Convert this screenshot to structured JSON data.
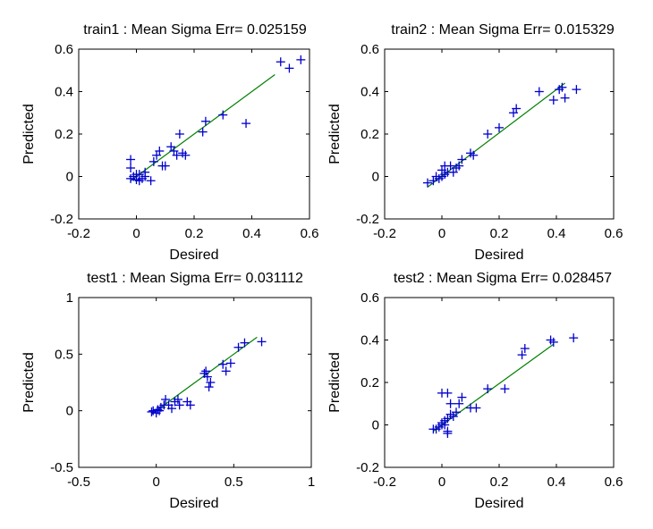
{
  "chart_data": [
    {
      "type": "scatter",
      "title": "train1 :  Mean Sigma Err= 0.025159",
      "xlabel": "Desired",
      "ylabel": "Predicted",
      "xlim": [
        -0.2,
        0.6
      ],
      "ylim": [
        -0.2,
        0.6
      ],
      "xticks": [
        "-0.2",
        "0",
        "0.2",
        "0.4",
        "0.6"
      ],
      "yticks": [
        "-0.2",
        "0",
        "0.2",
        "0.4",
        "0.6"
      ],
      "marker_color": "#0000cc",
      "line_color": "#008000",
      "fit_line": [
        [
          -0.02,
          -0.02
        ],
        [
          0.48,
          0.48
        ]
      ],
      "points": [
        [
          -0.02,
          0.08
        ],
        [
          -0.02,
          0.04
        ],
        [
          -0.01,
          0.0
        ],
        [
          -0.02,
          -0.01
        ],
        [
          0.0,
          -0.015
        ],
        [
          0.01,
          -0.02
        ],
        [
          0.02,
          -0.01
        ],
        [
          0.03,
          0.0
        ],
        [
          0.0,
          0.01
        ],
        [
          0.01,
          0.01
        ],
        [
          0.03,
          0.02
        ],
        [
          0.05,
          -0.02
        ],
        [
          0.06,
          0.07
        ],
        [
          0.07,
          0.1
        ],
        [
          0.08,
          0.12
        ],
        [
          0.09,
          0.05
        ],
        [
          0.1,
          0.05
        ],
        [
          0.12,
          0.14
        ],
        [
          0.13,
          0.12
        ],
        [
          0.14,
          0.1
        ],
        [
          0.15,
          0.2
        ],
        [
          0.16,
          0.11
        ],
        [
          0.17,
          0.1
        ],
        [
          0.23,
          0.21
        ],
        [
          0.24,
          0.26
        ],
        [
          0.3,
          0.29
        ],
        [
          0.38,
          0.25
        ],
        [
          0.5,
          0.54
        ],
        [
          0.53,
          0.51
        ],
        [
          0.57,
          0.55
        ]
      ]
    },
    {
      "type": "scatter",
      "title": "train2 :  Mean Sigma Err= 0.015329",
      "xlabel": "Desired",
      "ylabel": "Predicted",
      "xlim": [
        -0.2,
        0.6
      ],
      "ylim": [
        -0.2,
        0.6
      ],
      "xticks": [
        "-0.2",
        "0",
        "0.2",
        "0.4",
        "0.6"
      ],
      "yticks": [
        "-0.2",
        "0",
        "0.2",
        "0.4",
        "0.6"
      ],
      "marker_color": "#0000cc",
      "line_color": "#008000",
      "fit_line": [
        [
          -0.05,
          -0.05
        ],
        [
          0.43,
          0.44
        ]
      ],
      "points": [
        [
          -0.05,
          -0.03
        ],
        [
          -0.03,
          -0.02
        ],
        [
          -0.02,
          0.0
        ],
        [
          -0.01,
          -0.01
        ],
        [
          0.0,
          0.0
        ],
        [
          0.01,
          0.01
        ],
        [
          0.02,
          0.02
        ],
        [
          0.0,
          0.03
        ],
        [
          0.01,
          0.05
        ],
        [
          0.03,
          0.05
        ],
        [
          0.04,
          0.02
        ],
        [
          0.05,
          0.04
        ],
        [
          0.06,
          0.05
        ],
        [
          0.07,
          0.08
        ],
        [
          0.1,
          0.11
        ],
        [
          0.11,
          0.1
        ],
        [
          0.16,
          0.2
        ],
        [
          0.2,
          0.23
        ],
        [
          0.25,
          0.3
        ],
        [
          0.26,
          0.32
        ],
        [
          0.34,
          0.4
        ],
        [
          0.39,
          0.36
        ],
        [
          0.41,
          0.41
        ],
        [
          0.42,
          0.42
        ],
        [
          0.43,
          0.37
        ],
        [
          0.47,
          0.41
        ]
      ]
    },
    {
      "type": "scatter",
      "title": "test1 :  Mean Sigma Err= 0.031112",
      "xlabel": "Desired",
      "ylabel": "Predicted",
      "xlim": [
        -0.5,
        1
      ],
      "ylim": [
        -0.5,
        1
      ],
      "xticks": [
        "-0.5",
        "0",
        "0.5",
        "1"
      ],
      "yticks": [
        "-0.5",
        "0",
        "0.5",
        "1"
      ],
      "marker_color": "#0000cc",
      "line_color": "#008000",
      "fit_line": [
        [
          -0.03,
          -0.03
        ],
        [
          0.65,
          0.65
        ]
      ],
      "points": [
        [
          -0.03,
          -0.01
        ],
        [
          -0.02,
          0.0
        ],
        [
          0.0,
          -0.02
        ],
        [
          0.01,
          0.01
        ],
        [
          0.02,
          0.0
        ],
        [
          0.03,
          0.03
        ],
        [
          0.05,
          0.05
        ],
        [
          0.06,
          0.1
        ],
        [
          0.08,
          0.05
        ],
        [
          0.1,
          0.02
        ],
        [
          0.12,
          0.08
        ],
        [
          0.14,
          0.1
        ],
        [
          0.15,
          0.05
        ],
        [
          0.2,
          0.08
        ],
        [
          0.22,
          0.05
        ],
        [
          0.31,
          0.33
        ],
        [
          0.32,
          0.35
        ],
        [
          0.33,
          0.3
        ],
        [
          0.34,
          0.21
        ],
        [
          0.35,
          0.25
        ],
        [
          0.43,
          0.41
        ],
        [
          0.45,
          0.35
        ],
        [
          0.48,
          0.42
        ],
        [
          0.53,
          0.56
        ],
        [
          0.57,
          0.6
        ],
        [
          0.68,
          0.61
        ]
      ]
    },
    {
      "type": "scatter",
      "title": "test2 :  Mean Sigma Err= 0.028457",
      "xlabel": "Desired",
      "ylabel": "Predicted",
      "xlim": [
        -0.2,
        0.6
      ],
      "ylim": [
        -0.2,
        0.6
      ],
      "xticks": [
        "-0.2",
        "0",
        "0.2",
        "0.4",
        "0.6"
      ],
      "yticks": [
        "-0.2",
        "0",
        "0.2",
        "0.4",
        "0.6"
      ],
      "marker_color": "#0000cc",
      "line_color": "#008000",
      "fit_line": [
        [
          -0.03,
          -0.03
        ],
        [
          0.39,
          0.38
        ]
      ],
      "points": [
        [
          -0.03,
          -0.02
        ],
        [
          -0.02,
          -0.02
        ],
        [
          -0.01,
          -0.01
        ],
        [
          0.0,
          0.0
        ],
        [
          0.01,
          0.0
        ],
        [
          0.0,
          0.01
        ],
        [
          0.01,
          0.02
        ],
        [
          0.02,
          -0.03
        ],
        [
          0.02,
          -0.04
        ],
        [
          0.02,
          0.03
        ],
        [
          0.03,
          0.05
        ],
        [
          0.04,
          0.04
        ],
        [
          0.05,
          0.06
        ],
        [
          0.06,
          0.1
        ],
        [
          0.07,
          0.13
        ],
        [
          0.0,
          0.15
        ],
        [
          0.02,
          0.15
        ],
        [
          0.03,
          0.1
        ],
        [
          0.1,
          0.08
        ],
        [
          0.12,
          0.08
        ],
        [
          0.16,
          0.17
        ],
        [
          0.22,
          0.17
        ],
        [
          0.28,
          0.33
        ],
        [
          0.29,
          0.36
        ],
        [
          0.38,
          0.4
        ],
        [
          0.39,
          0.39
        ],
        [
          0.46,
          0.41
        ]
      ]
    }
  ]
}
